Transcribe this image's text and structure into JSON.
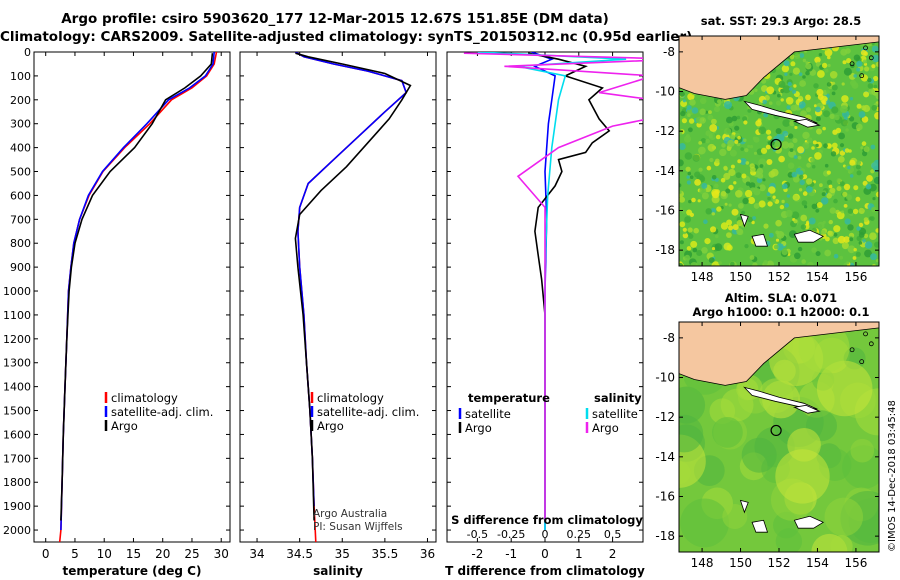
{
  "header": {
    "line1": "Argo profile: csiro 5903620_177 12-Mar-2015 12.67S 151.85E (DM data)",
    "line2": "Climatology: CARS2009. Satellite-adjusted climatology: synTS_20150312.nc (0.95d earlier)"
  },
  "maps": {
    "sst_title": "sat. SST: 29.3 Argo: 28.5",
    "sla_title_1": "Altim. SLA: 0.071",
    "sla_title_2": "Argo h1000: 0.1 h2000: 0.1",
    "lon_ticks": [
      148,
      150,
      152,
      154,
      156
    ],
    "lat_ticks": [
      -8,
      -10,
      -12,
      -14,
      -16,
      -18
    ],
    "lon_range": [
      146.8,
      157.2
    ],
    "lat_range": [
      -18.8,
      -7.2
    ],
    "argo_position": {
      "lon": 151.85,
      "lat": -12.67
    }
  },
  "credits": {
    "line1": "Argo Australia",
    "line2": "PI: Susan Wijffels"
  },
  "timestamp": "©IMOS 14-Dec-2018 03:45:48",
  "colors": {
    "climatology": "#ff0000",
    "satellite": "#0000ff",
    "argo": "#000000",
    "s_satellite": "#00ddee",
    "s_argo": "#ee22ee"
  },
  "chart_data": [
    {
      "type": "line",
      "id": "temperature",
      "xlabel": "temperature (deg C)",
      "ylabel": "",
      "xlim": [
        -2,
        31.5
      ],
      "ylim": [
        2050,
        0
      ],
      "x_ticks": [
        0,
        5,
        10,
        15,
        20,
        25,
        30
      ],
      "y_ticks": [
        0,
        100,
        200,
        300,
        400,
        500,
        600,
        700,
        800,
        900,
        1000,
        1100,
        1200,
        1300,
        1400,
        1500,
        1600,
        1700,
        1800,
        1900,
        2000
      ],
      "legend": [
        "climatology",
        "satellite-adj. clim.",
        "Argo"
      ],
      "series": [
        {
          "name": "climatology",
          "color": "#ff0000",
          "x": [
            29.2,
            28.8,
            27.5,
            25.0,
            21.5,
            17.8,
            13.5,
            9.8,
            7.4,
            5.8,
            4.8,
            4.3,
            3.9,
            3.6,
            3.3,
            3.0,
            2.8,
            2.6,
            2.4
          ],
          "depth": [
            0,
            50,
            100,
            150,
            200,
            300,
            400,
            500,
            600,
            700,
            800,
            900,
            1000,
            1200,
            1400,
            1600,
            1800,
            2000,
            2050
          ]
        },
        {
          "name": "satellite-adj. clim.",
          "color": "#0000ff",
          "x": [
            28.8,
            28.6,
            27.3,
            24.6,
            21.0,
            17.3,
            13.3,
            9.7,
            7.3,
            5.8,
            4.8,
            4.3,
            3.9,
            3.6,
            3.3,
            3.0,
            2.8,
            2.6
          ],
          "depth": [
            0,
            50,
            100,
            150,
            200,
            300,
            400,
            500,
            600,
            700,
            800,
            900,
            1000,
            1200,
            1400,
            1600,
            1800,
            2000
          ]
        },
        {
          "name": "Argo",
          "color": "#000000",
          "x": [
            28.5,
            28.3,
            26.5,
            23.8,
            20.5,
            18.2,
            15.2,
            11.0,
            8.0,
            6.2,
            5.0,
            4.4,
            4.0,
            3.6,
            3.3,
            3.0,
            2.8,
            2.6
          ],
          "depth": [
            5,
            50,
            100,
            150,
            200,
            300,
            400,
            500,
            600,
            700,
            800,
            900,
            1000,
            1200,
            1400,
            1600,
            1800,
            1960
          ]
        }
      ]
    },
    {
      "type": "line",
      "id": "salinity",
      "xlabel": "salinity",
      "xlim": [
        33.8,
        36.1
      ],
      "ylim": [
        2050,
        0
      ],
      "x_ticks": [
        34,
        34.5,
        35,
        35.5,
        36
      ],
      "legend": [
        "climatology",
        "satellite-adj. clim.",
        "Argo"
      ],
      "series": [
        {
          "name": "climatology",
          "color": "#ff0000",
          "x": [
            34.45,
            34.55,
            34.9,
            35.3,
            35.7,
            35.75,
            35.5,
            35.2,
            34.9,
            34.6,
            34.5,
            34.48,
            34.5,
            34.55,
            34.58,
            34.62,
            34.65,
            34.67,
            34.69
          ],
          "depth": [
            0,
            20,
            50,
            80,
            120,
            170,
            250,
            350,
            450,
            550,
            650,
            750,
            900,
            1100,
            1300,
            1500,
            1700,
            1900,
            2050
          ]
        },
        {
          "name": "satellite-adj. clim.",
          "color": "#0000ff",
          "x": [
            34.45,
            34.55,
            34.9,
            35.3,
            35.7,
            35.75,
            35.5,
            35.2,
            34.9,
            34.6,
            34.5,
            34.48,
            34.5,
            34.55,
            34.58,
            34.62,
            34.65,
            34.67
          ],
          "depth": [
            0,
            20,
            50,
            80,
            120,
            170,
            250,
            350,
            450,
            550,
            650,
            750,
            900,
            1100,
            1300,
            1500,
            1700,
            1900
          ]
        },
        {
          "name": "Argo",
          "color": "#000000",
          "x": [
            34.45,
            34.6,
            35.0,
            35.5,
            35.8,
            35.7,
            35.55,
            35.3,
            35.05,
            34.75,
            34.5,
            34.45,
            34.48,
            34.54,
            34.58,
            34.62,
            34.65,
            34.67
          ],
          "depth": [
            5,
            20,
            50,
            90,
            140,
            200,
            280,
            380,
            480,
            580,
            680,
            780,
            900,
            1100,
            1300,
            1500,
            1700,
            1960
          ]
        }
      ]
    },
    {
      "type": "line",
      "id": "difference",
      "xlabel": "T difference from climatology",
      "x2label": "S difference from climatology",
      "xlim": [
        -2.9,
        2.9
      ],
      "ylim": [
        2050,
        0
      ],
      "x_ticks": [
        -2,
        -1,
        0,
        1,
        2
      ],
      "s_scale": 4,
      "x2_ticks": [
        -0.5,
        -0.25,
        0,
        0.25,
        0.5
      ],
      "x2_tick_labels": [
        "-0.5",
        "-0.25",
        "0",
        "0.25",
        "0.5"
      ],
      "legend_t_title": "temperature",
      "legend_s_title": "salinity",
      "legend": [
        "satellite",
        "Argo",
        "satellite",
        "Argo"
      ],
      "series": [
        {
          "name": "T satellite",
          "color": "#0000ff",
          "x": [
            -0.4,
            0.2,
            -0.3,
            0.3,
            0.2,
            0.1,
            0.0,
            0.05,
            0.0,
            0.0,
            0.0
          ],
          "depth": [
            0,
            30,
            60,
            100,
            200,
            300,
            500,
            700,
            1000,
            1500,
            2000
          ]
        },
        {
          "name": "T Argo",
          "color": "#000000",
          "x": [
            -0.5,
            0.4,
            1.2,
            0.6,
            1.7,
            1.3,
            1.6,
            1.9,
            1.4,
            1.2,
            0.4,
            0.5,
            0.3,
            -0.2,
            -0.3,
            -0.2,
            -0.1,
            0.0,
            0.0,
            0.0,
            0.0
          ],
          "depth": [
            5,
            30,
            60,
            100,
            150,
            200,
            280,
            330,
            380,
            420,
            450,
            500,
            560,
            650,
            750,
            850,
            950,
            1100,
            1400,
            1700,
            1960
          ]
        },
        {
          "name": "S satellite",
          "color": "#00ddee",
          "x": [
            -0.5,
            0.6,
            -0.2,
            0.15,
            0.1,
            0.05,
            0.02,
            0.0,
            0.0,
            0.0
          ],
          "depth": [
            0,
            30,
            60,
            100,
            200,
            400,
            600,
            900,
            1400,
            2000
          ]
        },
        {
          "name": "S Argo",
          "color": "#ee22ee",
          "x": [
            -0.6,
            1.0,
            -0.3,
            0.8,
            0.4,
            1.2,
            0.5,
            0.1,
            -0.2,
            0.0,
            0.0,
            0.0,
            0.0
          ],
          "depth": [
            5,
            30,
            60,
            100,
            170,
            230,
            310,
            400,
            520,
            650,
            900,
            1400,
            1960
          ]
        }
      ]
    }
  ]
}
